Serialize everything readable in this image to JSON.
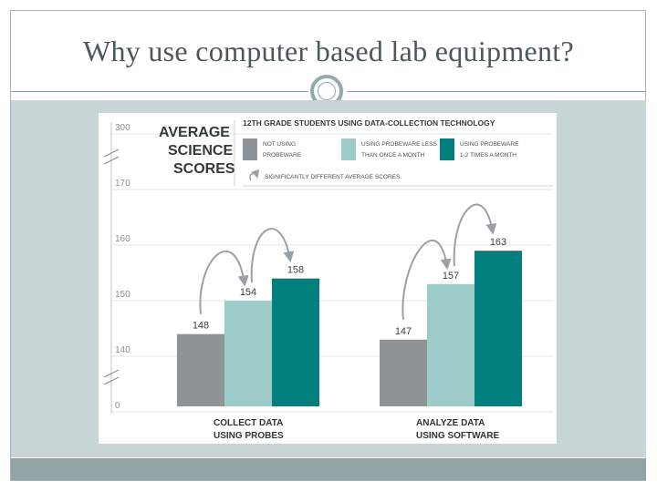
{
  "slide": {
    "title": "Why use computer based lab equipment?"
  },
  "colors": {
    "not_using": "#8d9397",
    "less_than_monthly": "#9ccbc8",
    "monthly": "#007f7c",
    "title_text": "#4c585a",
    "content_bg": "#c9d4d7",
    "footer_band": "#8fa5a6",
    "arrow": "#9aa0a3"
  },
  "chart_data": {
    "type": "bar",
    "heading": "AVERAGE SCIENCE SCORES",
    "subtitle": "12TH GRADE STUDENTS USING DATA-COLLECTION TECHNOLOGY",
    "categories": [
      "COLLECT DATA USING PROBES",
      "ANALYZE DATA USING SOFTWARE"
    ],
    "series": [
      {
        "name": "NOT USING PROBEWARE",
        "values": [
          148,
          147
        ]
      },
      {
        "name": "USING PROBEWARE LESS THAN ONCE A MONTH",
        "values": [
          154,
          157
        ]
      },
      {
        "name": "USING PROBEWARE 1-2 TIMES A MONTH",
        "values": [
          158,
          163
        ]
      }
    ],
    "legend_note": "SIGNIFICANTLY DIFFERENT AVERAGE SCORES.",
    "y_ticks": [
      "300",
      "170",
      "160",
      "150",
      "140",
      "0"
    ],
    "ylim": [
      135,
      175
    ],
    "axis_breaks": true,
    "grid": true,
    "legend_position": "top"
  }
}
